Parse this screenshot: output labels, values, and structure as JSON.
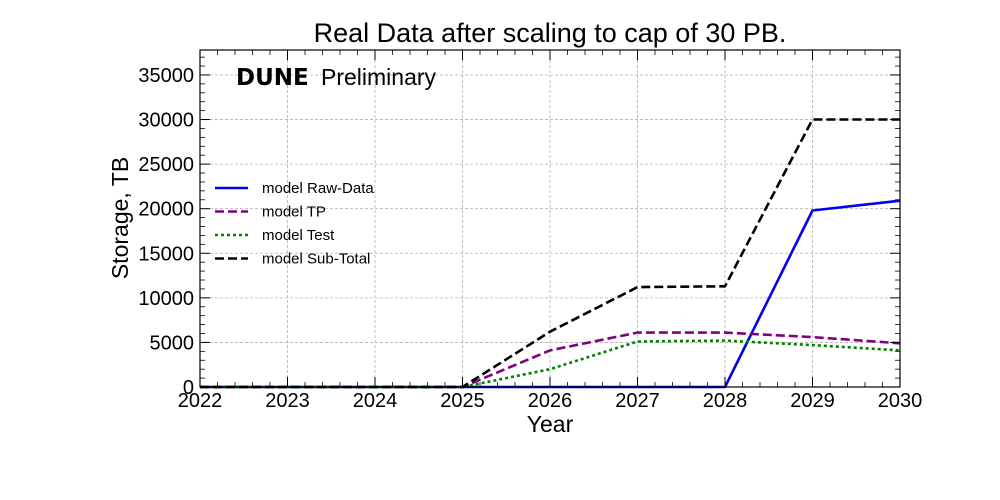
{
  "chart_data": {
    "type": "line",
    "title": "Real Data after scaling to cap of 30 PB.",
    "xlabel": "Year",
    "ylabel": "Storage, TB",
    "xlim": [
      2022,
      2030
    ],
    "ylim": [
      0,
      37800
    ],
    "x_ticks": [
      "2022",
      "2023",
      "2024",
      "2025",
      "2026",
      "2027",
      "2028",
      "2029",
      "2030"
    ],
    "y_ticks": [
      "0",
      "5000",
      "10000",
      "15000",
      "20000",
      "25000",
      "30000",
      "35000"
    ],
    "grid": true,
    "legend_position": "center-left",
    "brand": {
      "bold": "DUNE",
      "normal": "Preliminary"
    },
    "series": [
      {
        "name": "model Raw-Data",
        "color": "#0000ee",
        "style": "solid",
        "x": [
          2022,
          2023,
          2024,
          2025,
          2026,
          2027,
          2028,
          2029,
          2030
        ],
        "y": [
          0,
          0,
          0,
          0,
          0,
          0,
          0,
          19800,
          20900
        ]
      },
      {
        "name": "model TP",
        "color": "#800080",
        "style": "dashed",
        "x": [
          2022,
          2023,
          2024,
          2025,
          2026,
          2027,
          2028,
          2029,
          2030
        ],
        "y": [
          0,
          0,
          0,
          0,
          4100,
          6100,
          6100,
          5600,
          4900
        ]
      },
      {
        "name": "model Test",
        "color": "#008000",
        "style": "dotted",
        "x": [
          2022,
          2023,
          2024,
          2025,
          2026,
          2027,
          2028,
          2029,
          2030
        ],
        "y": [
          0,
          0,
          0,
          0,
          2000,
          5100,
          5200,
          4700,
          4100
        ]
      },
      {
        "name": "model Sub-Total",
        "color": "#000000",
        "style": "dashed",
        "x": [
          2022,
          2023,
          2024,
          2025,
          2026,
          2027,
          2028,
          2029,
          2030
        ],
        "y": [
          0,
          0,
          0,
          0,
          6200,
          11200,
          11300,
          30000,
          30000
        ]
      }
    ]
  }
}
